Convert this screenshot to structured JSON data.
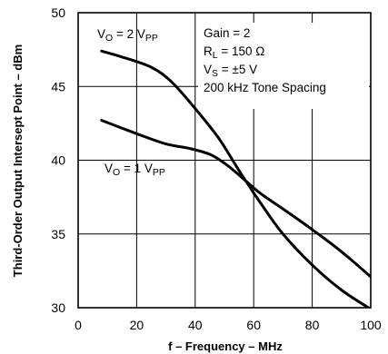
{
  "chart_data": {
    "type": "line",
    "title": "",
    "xlabel": "f – Frequency – MHz",
    "ylabel": "Third-Order Output Intersept Point – dBm",
    "xlim": [
      0,
      100
    ],
    "ylim": [
      30,
      50
    ],
    "xticks": [
      "0",
      "20",
      "40",
      "60",
      "80",
      "100"
    ],
    "yticks": [
      "30",
      "35",
      "40",
      "45",
      "50"
    ],
    "grid": true,
    "series": [
      {
        "label_main": "V",
        "label_sub1": "O",
        "label_mid": " = 2 V",
        "label_sub2": "PP",
        "x": [
          8,
          15,
          25,
          32,
          40,
          48,
          55,
          62,
          70,
          80,
          90,
          100
        ],
        "y": [
          47.4,
          47.0,
          46.3,
          45.3,
          43.5,
          41.5,
          39.3,
          37.2,
          35.0,
          32.9,
          31.2,
          29.9
        ]
      },
      {
        "label_main": "V",
        "label_sub1": "O",
        "label_mid": " = 1 V",
        "label_sub2": "PP",
        "x": [
          8,
          20,
          30,
          38,
          45,
          50,
          55,
          62,
          70,
          80,
          90,
          100
        ],
        "y": [
          42.7,
          41.8,
          41.1,
          40.8,
          40.4,
          39.8,
          39.0,
          37.8,
          36.7,
          35.3,
          33.8,
          32.1
        ]
      }
    ],
    "annotation": {
      "gain": "Gain = 2",
      "rl_main": "R",
      "rl_sub": "L",
      "rl_val": " = 150 Ω",
      "vs_main": "V",
      "vs_sub": "S",
      "vs_val": " = ±5 V",
      "tone": "200 kHz Tone Spacing"
    }
  }
}
